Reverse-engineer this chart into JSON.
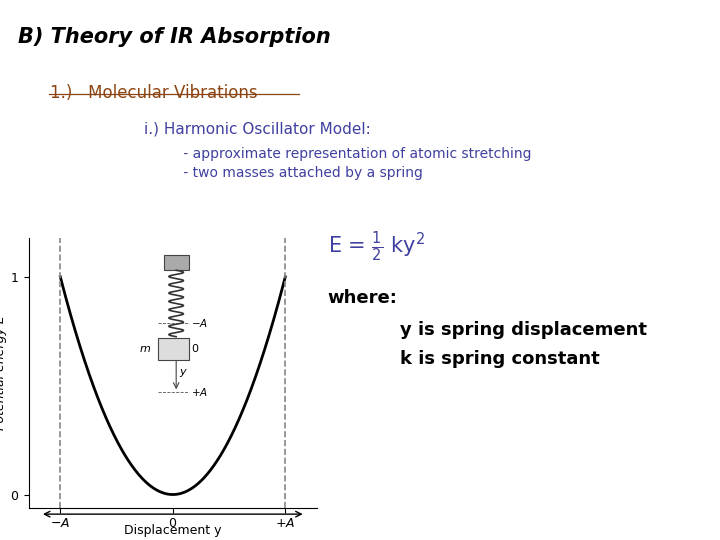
{
  "bg_color": "#ffffff",
  "title": "B) Theory of IR Absorption",
  "title_color": "#000000",
  "title_fontsize": 15,
  "subtitle1": "1.)   Molecular Vibrations",
  "subtitle1_color": "#8B4513",
  "line1": "i.) Harmonic Oscillator Model:",
  "line1_color": "#4040a0",
  "line2": "         - approximate representation of atomic stretching",
  "line2_color": "#4040a0",
  "line3": "         - two masses attached by a spring",
  "line3_color": "#4040a0",
  "eq_color": "#4040a0",
  "where_color": "#000000",
  "indent_text1": "y is spring displacement",
  "indent_text2": "k is spring constant",
  "indent_color": "#000000",
  "plot_ylabel": "Potential energy E",
  "plot_xlabel": "Displacement y",
  "parabola_color": "#000000",
  "dashed_color": "#888888"
}
